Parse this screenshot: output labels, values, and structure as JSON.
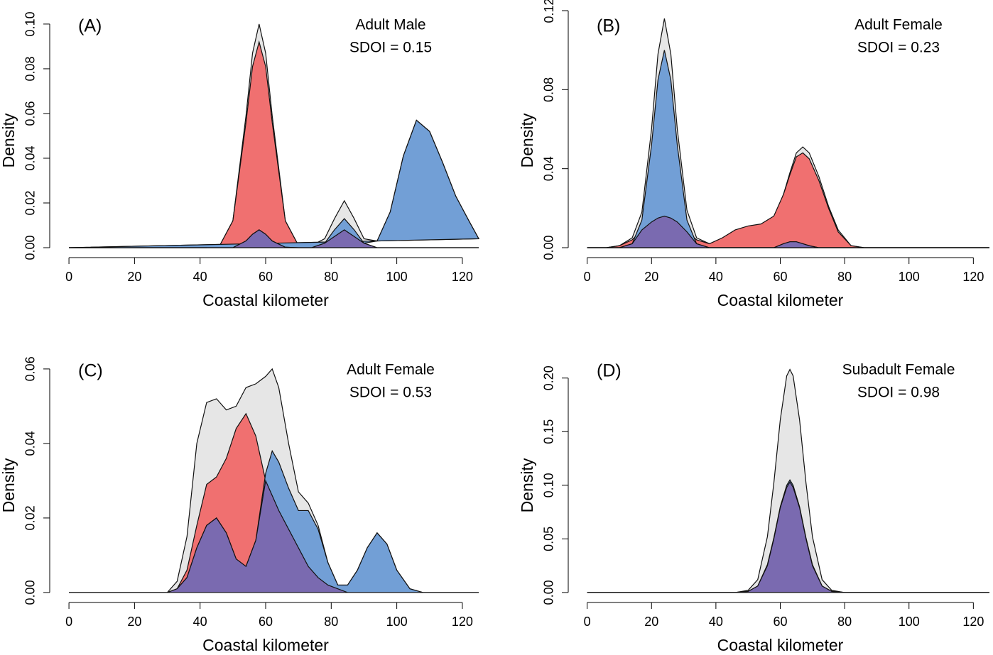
{
  "chart_data": [
    {
      "type": "area",
      "label": "(A)",
      "annotations": [
        "Adult Male",
        "SDOI = 0.15"
      ],
      "xlabel": "Coastal kilometer",
      "ylabel": "Density",
      "xlim": [
        -5,
        125
      ],
      "ylim": [
        -0.0038,
        0.106
      ],
      "xticks": [
        0,
        20,
        40,
        60,
        80,
        100,
        120
      ],
      "yticks": [
        {
          "value": 0,
          "label": "0.00"
        },
        {
          "value": 0.02,
          "label": "0.02"
        },
        {
          "value": 0.04,
          "label": "0.04"
        },
        {
          "value": 0.06,
          "label": "0.06"
        },
        {
          "value": 0.08,
          "label": "0.08"
        },
        {
          "value": 0.1,
          "label": "0.10"
        }
      ],
      "x": [
        0,
        38,
        42,
        46,
        50,
        54,
        56,
        58,
        60,
        62,
        66,
        70,
        74,
        78,
        81,
        84,
        87,
        90,
        94,
        98,
        102,
        106,
        110,
        114,
        118,
        122,
        125
      ],
      "series": [
        {
          "color": "#e6e6e6",
          "values": [
            0,
            0,
            0,
            0.001,
            0.012,
            0.059,
            0.087,
            0.1,
            0.087,
            0.059,
            0.012,
            0.001,
            0.001,
            0.004,
            0.013,
            0.021,
            0.013,
            0.004,
            0.003,
            0.016,
            0.041,
            0.057,
            0.052,
            0.038,
            0.023,
            0.012,
            0.004
          ]
        },
        {
          "color": "#f07070",
          "values": [
            0,
            0,
            0,
            0.001,
            0.012,
            0.056,
            0.081,
            0.092,
            0.081,
            0.056,
            0.012,
            0.001,
            0.0005,
            0.002,
            0.005,
            0.008,
            0.005,
            0.002,
            0,
            0,
            0,
            0,
            0,
            0,
            0,
            0,
            0
          ]
        },
        {
          "color": "#729fd6",
          "values": [
            0,
            0,
            0,
            0,
            0,
            0.003,
            0.006,
            0.008,
            0.006,
            0.003,
            0.0002,
            0,
            0,
            0.002,
            0.008,
            0.013,
            0.008,
            0.002,
            0.003,
            0.016,
            0.041,
            0.057,
            0.052,
            0.038,
            0.023,
            0.012,
            0.004
          ]
        },
        {
          "color": "#7a6ab0",
          "values": [
            0,
            0,
            0,
            0,
            0,
            0.003,
            0.006,
            0.008,
            0.006,
            0.003,
            0.0002,
            0,
            0,
            0.002,
            0.005,
            0.008,
            0.005,
            0.002,
            0,
            0,
            0,
            0,
            0,
            0,
            0,
            0,
            0
          ]
        }
      ]
    },
    {
      "type": "area",
      "label": "(B)",
      "annotations": [
        "Adult Female",
        "SDOI = 0.23"
      ],
      "xlabel": "Coastal kilometer",
      "ylabel": "Density",
      "xlim": [
        -5,
        125
      ],
      "ylim": [
        -0.0043,
        0.12
      ],
      "xticks": [
        0,
        20,
        40,
        60,
        80,
        100,
        120
      ],
      "yticks": [
        {
          "value": 0,
          "label": "0.00"
        },
        {
          "value": 0.04,
          "label": "0.04"
        },
        {
          "value": 0.08,
          "label": "0.08"
        },
        {
          "value": 0.12,
          "label": "0.12"
        }
      ],
      "x": [
        0,
        6,
        10,
        14,
        17,
        20,
        22,
        24,
        26,
        28,
        31,
        34,
        38,
        42,
        46,
        50,
        54,
        58,
        61,
        63,
        65,
        67,
        69,
        72,
        75,
        78,
        82,
        86,
        125
      ],
      "series": [
        {
          "color": "#e6e6e6",
          "values": [
            0,
            0,
            0.001,
            0.005,
            0.018,
            0.06,
            0.098,
            0.116,
            0.098,
            0.06,
            0.019,
            0.005,
            0.002,
            0.004,
            0.008,
            0.01,
            0.011,
            0.015,
            0.027,
            0.038,
            0.048,
            0.051,
            0.048,
            0.036,
            0.021,
            0.009,
            0.001,
            0,
            0
          ]
        },
        {
          "color": "#f07070",
          "values": [
            0,
            0,
            0.001,
            0.004,
            0.009,
            0.013,
            0.015,
            0.016,
            0.015,
            0.013,
            0.008,
            0.004,
            0.002,
            0.005,
            0.009,
            0.011,
            0.012,
            0.016,
            0.027,
            0.037,
            0.046,
            0.048,
            0.045,
            0.034,
            0.02,
            0.008,
            0.001,
            0,
            0
          ]
        },
        {
          "color": "#729fd6",
          "values": [
            0,
            0,
            0,
            0.002,
            0.014,
            0.052,
            0.085,
            0.1,
            0.085,
            0.052,
            0.014,
            0.002,
            0,
            0,
            0,
            0,
            0,
            0,
            0.002,
            0.003,
            0.003,
            0.002,
            0.001,
            0,
            0,
            0,
            0,
            0,
            0
          ]
        },
        {
          "color": "#7a6ab0",
          "values": [
            0,
            0,
            0,
            0.002,
            0.009,
            0.013,
            0.015,
            0.016,
            0.015,
            0.013,
            0.008,
            0.002,
            0,
            0,
            0,
            0,
            0,
            0,
            0.002,
            0.003,
            0.003,
            0.002,
            0.001,
            0,
            0,
            0,
            0,
            0,
            0
          ]
        }
      ]
    },
    {
      "type": "area",
      "label": "(C)",
      "annotations": [
        "Adult Female",
        "SDOI = 0.53"
      ],
      "xlabel": "Coastal kilometer",
      "ylabel": "Density",
      "xlim": [
        -5,
        125
      ],
      "ylim": [
        -0.0023,
        0.0636
      ],
      "xticks": [
        0,
        20,
        40,
        60,
        80,
        100,
        120
      ],
      "yticks": [
        {
          "value": 0,
          "label": "0.00"
        },
        {
          "value": 0.02,
          "label": "0.02"
        },
        {
          "value": 0.04,
          "label": "0.04"
        },
        {
          "value": 0.06,
          "label": "0.06"
        }
      ],
      "x": [
        0,
        30,
        33,
        36,
        39,
        42,
        45,
        48,
        51,
        54,
        57,
        60,
        62,
        64,
        67,
        70,
        73,
        76,
        79,
        82,
        85,
        88,
        91,
        94,
        97,
        100,
        104,
        108,
        125
      ],
      "series": [
        {
          "color": "#e6e6e6",
          "values": [
            0,
            0,
            0.003,
            0.015,
            0.04,
            0.051,
            0.052,
            0.049,
            0.05,
            0.055,
            0.056,
            0.058,
            0.06,
            0.055,
            0.04,
            0.027,
            0.024,
            0.018,
            0.008,
            0.002,
            0.002,
            0.006,
            0.012,
            0.016,
            0.013,
            0.006,
            0.001,
            0,
            0
          ]
        },
        {
          "color": "#f07070",
          "values": [
            0,
            0,
            0.001,
            0.006,
            0.018,
            0.029,
            0.031,
            0.036,
            0.044,
            0.048,
            0.042,
            0.03,
            0.026,
            0.022,
            0.017,
            0.012,
            0.007,
            0.004,
            0.002,
            0.001,
            0,
            0,
            0,
            0,
            0,
            0,
            0,
            0,
            0
          ]
        },
        {
          "color": "#729fd6",
          "values": [
            0,
            0,
            0.001,
            0.004,
            0.012,
            0.018,
            0.02,
            0.016,
            0.009,
            0.007,
            0.014,
            0.032,
            0.038,
            0.035,
            0.028,
            0.022,
            0.022,
            0.017,
            0.008,
            0.002,
            0.002,
            0.006,
            0.012,
            0.016,
            0.013,
            0.006,
            0.001,
            0,
            0
          ]
        },
        {
          "color": "#7a6ab0",
          "values": [
            0,
            0,
            0.001,
            0.004,
            0.012,
            0.018,
            0.02,
            0.016,
            0.009,
            0.007,
            0.014,
            0.03,
            0.026,
            0.022,
            0.017,
            0.012,
            0.007,
            0.004,
            0.002,
            0.001,
            0,
            0,
            0,
            0,
            0,
            0,
            0,
            0,
            0
          ]
        }
      ]
    },
    {
      "type": "area",
      "label": "(D)",
      "annotations": [
        "Subadult Female",
        "SDOI = 0.98"
      ],
      "xlabel": "Coastal kilometer",
      "ylabel": "Density",
      "xlim": [
        -5,
        125
      ],
      "ylim": [
        -0.008,
        0.221
      ],
      "xticks": [
        0,
        20,
        40,
        60,
        80,
        100,
        120
      ],
      "yticks": [
        {
          "value": 0,
          "label": "0.00"
        },
        {
          "value": 0.05,
          "label": "0.05"
        },
        {
          "value": 0.1,
          "label": "0.10"
        },
        {
          "value": 0.15,
          "label": "0.15"
        },
        {
          "value": 0.2,
          "label": "0.20"
        }
      ],
      "x": [
        0,
        46,
        50,
        53,
        56,
        58,
        60,
        62,
        63,
        64,
        66,
        68,
        70,
        73,
        76,
        80,
        125
      ],
      "series": [
        {
          "color": "#e6e6e6",
          "values": [
            0,
            0,
            0.002,
            0.012,
            0.052,
            0.102,
            0.161,
            0.202,
            0.208,
            0.202,
            0.161,
            0.102,
            0.052,
            0.012,
            0.002,
            0,
            0
          ]
        },
        {
          "color": "#f07070",
          "values": [
            0,
            0,
            0.001,
            0.006,
            0.025,
            0.05,
            0.079,
            0.098,
            0.103,
            0.098,
            0.079,
            0.05,
            0.025,
            0.006,
            0.001,
            0,
            0
          ]
        },
        {
          "color": "#729fd6",
          "values": [
            0,
            0,
            0.001,
            0.006,
            0.026,
            0.051,
            0.08,
            0.1,
            0.105,
            0.1,
            0.08,
            0.051,
            0.026,
            0.006,
            0.001,
            0,
            0
          ]
        },
        {
          "color": "#7a6ab0",
          "values": [
            0,
            0,
            0.001,
            0.006,
            0.025,
            0.05,
            0.079,
            0.098,
            0.103,
            0.098,
            0.079,
            0.05,
            0.025,
            0.006,
            0.001,
            0,
            0
          ]
        }
      ]
    }
  ]
}
